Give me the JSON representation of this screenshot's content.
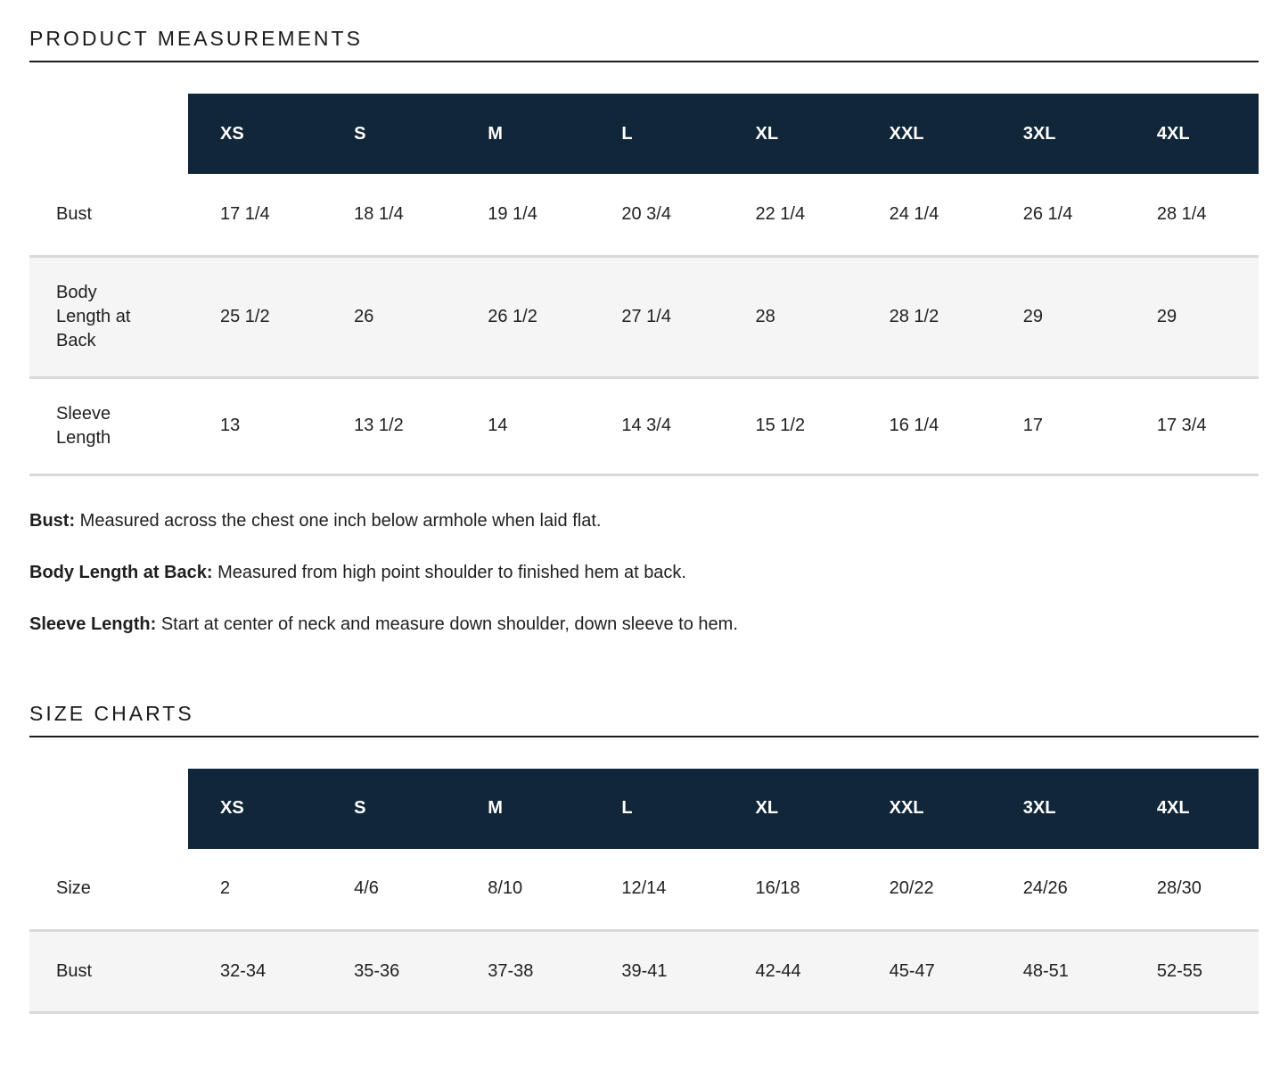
{
  "colors": {
    "header_bg": "#112639",
    "header_text": "#FFFFFF",
    "row_alt_bg": "#F5F5F5",
    "divider": "#D9D9D9",
    "rule": "#1A1A1A",
    "text": "#1F1F1F"
  },
  "product_measurements": {
    "title": "PRODUCT MEASUREMENTS",
    "table": {
      "columns": [
        "XS",
        "S",
        "M",
        "L",
        "XL",
        "XXL",
        "3XL",
        "4XL"
      ],
      "rows": [
        {
          "label": "Bust",
          "values": [
            "17 1/4",
            "18 1/4",
            "19 1/4",
            "20 3/4",
            "22 1/4",
            "24 1/4",
            "26 1/4",
            "28 1/4"
          ]
        },
        {
          "label": "Body Length at Back",
          "values": [
            "25 1/2",
            "26",
            "26 1/2",
            "27 1/4",
            "28",
            "28 1/2",
            "29",
            "29"
          ]
        },
        {
          "label": "Sleeve Length",
          "values": [
            "13",
            "13 1/2",
            "14",
            "14 3/4",
            "15 1/2",
            "16 1/4",
            "17",
            "17 3/4"
          ]
        }
      ]
    },
    "notes": [
      {
        "term": "Bust:",
        "definition": "Measured across the chest one inch below armhole when laid flat."
      },
      {
        "term": "Body Length at Back:",
        "definition": "Measured from high point shoulder to finished hem at back."
      },
      {
        "term": "Sleeve Length:",
        "definition": "Start at center of neck and measure down shoulder, down sleeve to hem."
      }
    ]
  },
  "size_charts": {
    "title": "SIZE CHARTS",
    "table": {
      "columns": [
        "XS",
        "S",
        "M",
        "L",
        "XL",
        "XXL",
        "3XL",
        "4XL"
      ],
      "rows": [
        {
          "label": "Size",
          "values": [
            "2",
            "4/6",
            "8/10",
            "12/14",
            "16/18",
            "20/22",
            "24/26",
            "28/30"
          ]
        },
        {
          "label": "Bust",
          "values": [
            "32-34",
            "35-36",
            "37-38",
            "39-41",
            "42-44",
            "45-47",
            "48-51",
            "52-55"
          ]
        }
      ]
    }
  }
}
